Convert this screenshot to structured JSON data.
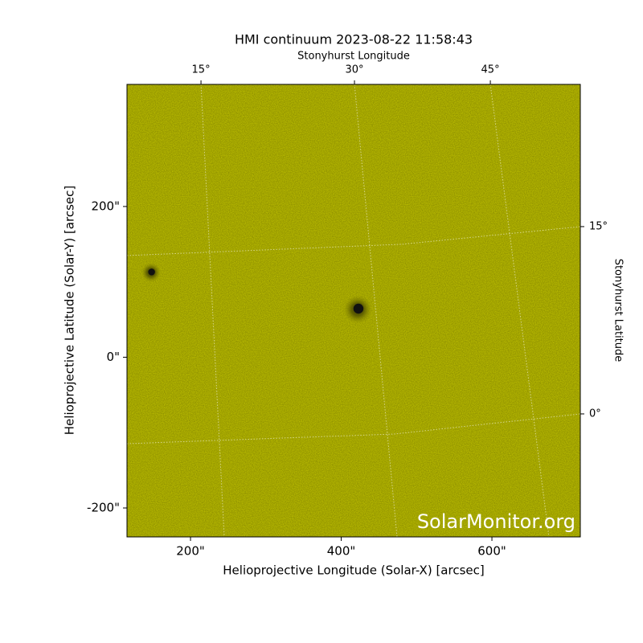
{
  "chart_data": {
    "type": "image",
    "title": "HMI continuum 2023-08-22 11:58:43",
    "xlabel": "Helioprojective Longitude (Solar-X) [arcsec]",
    "ylabel": "Helioprojective Latitude (Solar-Y) [arcsec]",
    "x2label": "Stonyhurst Longitude",
    "y2label": "Stonyhurst Latitude",
    "watermark": "SolarMonitor.org",
    "color": "#c6c800",
    "xlim": [
      115.7,
      717.3
    ],
    "ylim": [
      -238.4,
      362
    ],
    "xticks": [
      {
        "value": 200,
        "label": "200\""
      },
      {
        "value": 400,
        "label": "400\""
      },
      {
        "value": 600,
        "label": "600\""
      }
    ],
    "yticks": [
      {
        "value": -200,
        "label": "-200\""
      },
      {
        "value": 0,
        "label": "0\""
      },
      {
        "value": 200,
        "label": "200\""
      }
    ],
    "lon_grid": [
      {
        "label": "15°",
        "x": [
          213.9,
          244.8
        ],
        "y": [
          362,
          -238.4
        ]
      },
      {
        "label": "30°",
        "x": [
          417.6,
          474.1
        ],
        "y": [
          362,
          -238.4
        ]
      },
      {
        "label": "45°",
        "x": [
          597.9,
          675.7
        ],
        "y": [
          362,
          -238.4
        ]
      }
    ],
    "lat_grid": [
      {
        "label": "15°",
        "x": [
          115.7,
          480.5,
          717.3
        ],
        "y": [
          134.9,
          149.9,
          173.3
        ]
      },
      {
        "label": "0°",
        "x": [
          115.7,
          469.9,
          717.3
        ],
        "y": [
          -114.7,
          -101.9,
          -75.2
        ]
      }
    ],
    "spots": [
      {
        "x": 147.7,
        "y": 112.5,
        "r": 13
      },
      {
        "x": 421.9,
        "y": 63.5,
        "r": 19
      }
    ]
  }
}
